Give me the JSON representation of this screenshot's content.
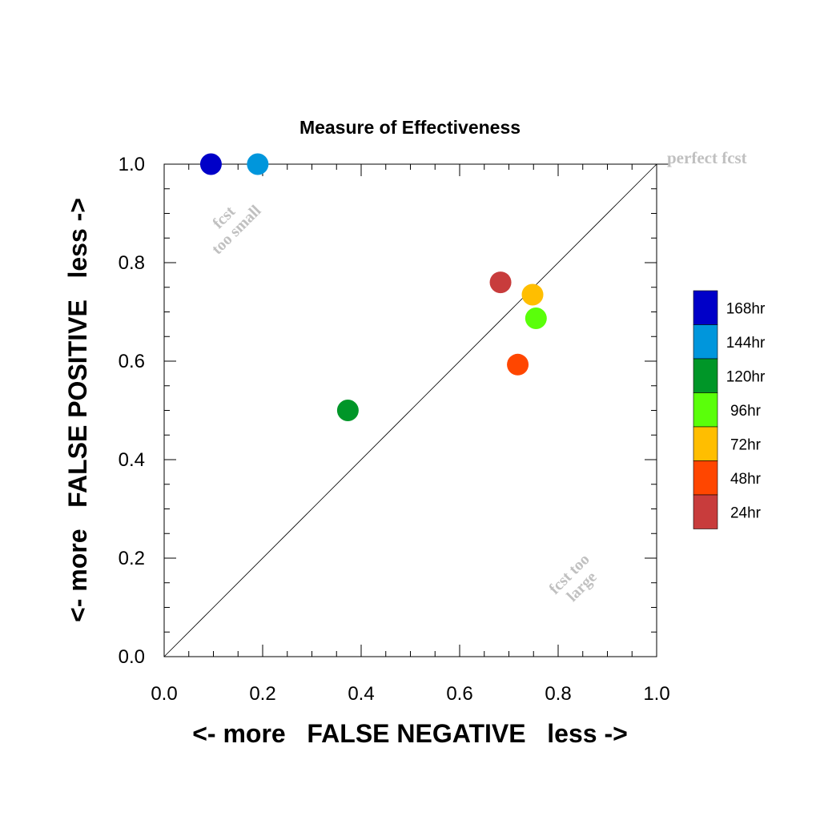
{
  "chart_data": {
    "type": "scatter",
    "title": "Measure of Effectiveness",
    "xlabel": "<- more   FALSE NEGATIVE   less ->",
    "ylabel": "<- more   FALSE POSITIVE   less ->",
    "xlim": [
      0.0,
      1.0
    ],
    "ylim": [
      0.0,
      1.0
    ],
    "x_ticks": [
      "0.0",
      "0.2",
      "0.4",
      "0.6",
      "0.8",
      "1.0"
    ],
    "y_ticks": [
      "0.0",
      "0.2",
      "0.4",
      "0.6",
      "0.8",
      "1.0"
    ],
    "grid": false,
    "diagonal": true,
    "annotations": {
      "perfect": "perfect fcst",
      "too_small_1": "fcst",
      "too_small_2": "too small",
      "too_large_1": "fcst too",
      "too_large_2": "large"
    },
    "legend_position": "right",
    "series": [
      {
        "name": "168hr",
        "color": "#0000c8",
        "x": 0.095,
        "y": 1.0
      },
      {
        "name": "144hr",
        "color": "#0096dc",
        "x": 0.19,
        "y": 1.0
      },
      {
        "name": "120hr",
        "color": "#009628",
        "x": 0.373,
        "y": 0.5
      },
      {
        "name": "96hr",
        "color": "#5aff0a",
        "x": 0.755,
        "y": 0.687
      },
      {
        "name": "72hr",
        "color": "#ffbe00",
        "x": 0.748,
        "y": 0.735
      },
      {
        "name": "48hr",
        "color": "#ff4600",
        "x": 0.718,
        "y": 0.593
      },
      {
        "name": "24hr",
        "color": "#c83c3c",
        "x": 0.683,
        "y": 0.76
      }
    ]
  }
}
